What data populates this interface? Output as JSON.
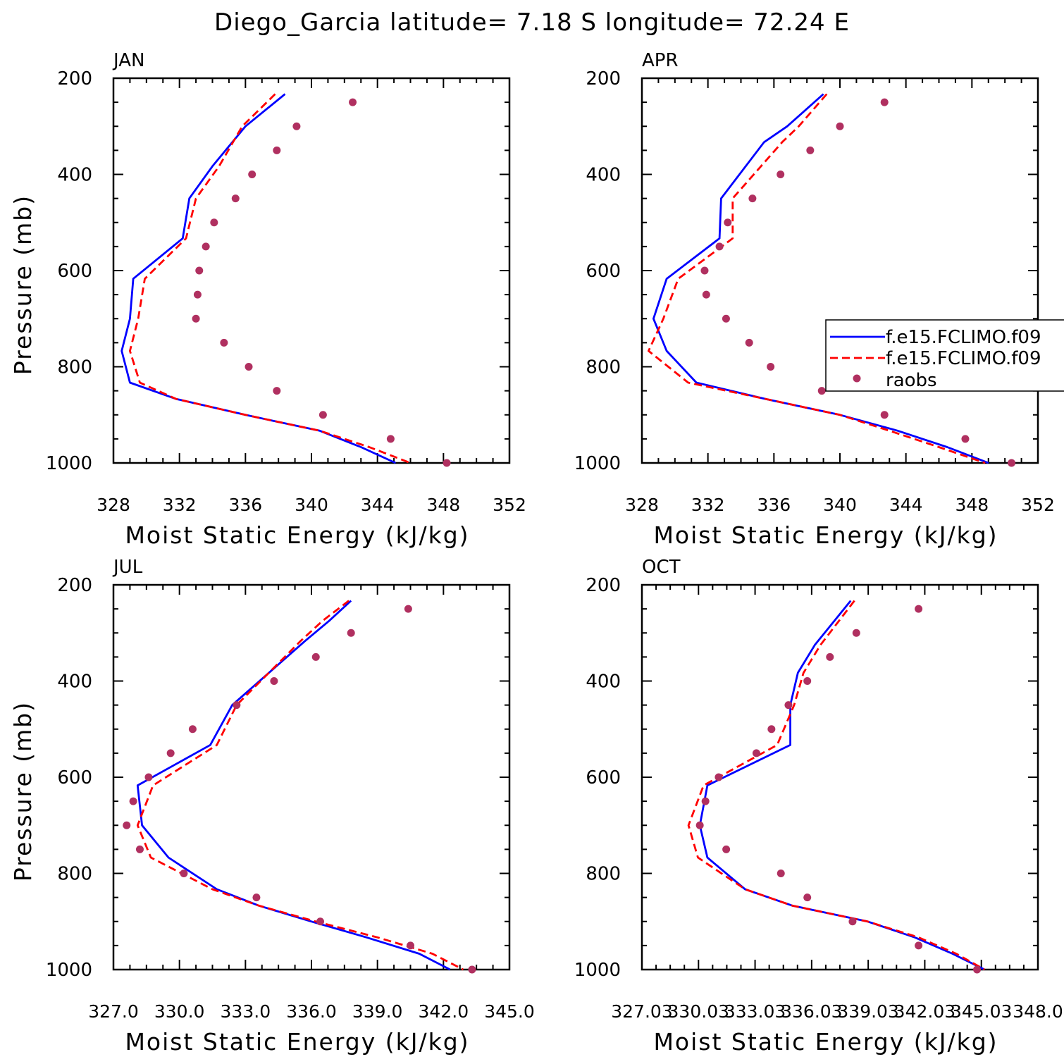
{
  "title": "Diego_Garcia  latitude= 7.18 S longitude= 72.24 E",
  "colors": {
    "model1": "#0000ff",
    "model2": "#ff0000",
    "raobs": "#b03060"
  },
  "legend": {
    "panel": 1,
    "placement": "right-middle, clipped by page edge",
    "entries": [
      {
        "label": "f.e15.FCLIMO.f09",
        "style": "solid-line",
        "color": "#0000ff"
      },
      {
        "label": "f.e15.FCLIMO.f09",
        "style": "dashed-line",
        "color": "#ff0000"
      },
      {
        "label": "raobs",
        "style": "marker",
        "color": "#b03060"
      }
    ]
  },
  "chart_data": [
    {
      "type": "line",
      "panel_title": "JAN",
      "xlabel": "Moist Static Energy (kJ/kg)",
      "ylabel": "Pressure (mb)",
      "xlim": [
        328,
        352
      ],
      "xticks": [
        328,
        332,
        336,
        340,
        344,
        348,
        352
      ],
      "xtick_labels": [
        "328",
        "332",
        "336",
        "340",
        "344",
        "348",
        "352"
      ],
      "ylim": [
        200,
        1000
      ],
      "yticks": [
        200,
        400,
        600,
        800,
        1000
      ],
      "ytick_labels": [
        "200",
        "400",
        "600",
        "800",
        "1000"
      ],
      "pressure_levels": [
        233,
        300,
        383,
        450,
        533,
        617,
        700,
        767,
        833,
        867,
        900,
        933,
        967,
        1000
      ],
      "series": [
        {
          "style": "solid",
          "color": "#0000ff",
          "values": [
            338.4,
            336.0,
            334.0,
            332.6,
            332.2,
            329.2,
            329.0,
            328.5,
            329.0,
            331.8,
            336.0,
            340.5,
            343.0,
            345.1
          ]
        },
        {
          "style": "dashed",
          "color": "#ff0000",
          "values": [
            337.8,
            335.8,
            334.4,
            333.0,
            332.4,
            329.9,
            329.5,
            329.0,
            329.6,
            331.8,
            336.0,
            340.5,
            343.5,
            346.0
          ]
        }
      ],
      "raobs": {
        "pressure": [
          250,
          300,
          350,
          400,
          450,
          500,
          550,
          600,
          650,
          700,
          750,
          800,
          850,
          900,
          950,
          1000
        ],
        "values": [
          342.5,
          339.1,
          337.9,
          336.4,
          335.4,
          334.1,
          333.6,
          333.2,
          333.1,
          333.0,
          334.7,
          336.2,
          337.9,
          340.7,
          344.8,
          348.2
        ]
      }
    },
    {
      "type": "line",
      "panel_title": "APR",
      "xlabel": "Moist Static Energy (kJ/kg)",
      "ylabel": "",
      "xlim": [
        328,
        352
      ],
      "xticks": [
        328,
        332,
        336,
        340,
        344,
        348,
        352
      ],
      "xtick_labels": [
        "328",
        "332",
        "336",
        "340",
        "344",
        "348",
        "352"
      ],
      "ylim": [
        200,
        1000
      ],
      "yticks": [
        200,
        400,
        600,
        800,
        1000
      ],
      "ytick_labels": [
        "200",
        "400",
        "600",
        "800",
        "1000"
      ],
      "pressure_levels": [
        233,
        300,
        333,
        450,
        533,
        617,
        700,
        767,
        833,
        867,
        900,
        933,
        967,
        1000
      ],
      "series": [
        {
          "style": "solid",
          "color": "#0000ff",
          "values": [
            339.0,
            336.8,
            335.4,
            332.8,
            332.7,
            329.5,
            328.7,
            329.5,
            331.3,
            335.5,
            340.0,
            343.5,
            346.5,
            349.0
          ]
        },
        {
          "style": "dashed",
          "color": "#ff0000",
          "values": [
            339.2,
            337.5,
            336.5,
            333.5,
            333.5,
            330.2,
            329.3,
            328.4,
            330.8,
            335.5,
            340.0,
            343.0,
            346.0,
            348.8
          ]
        }
      ],
      "raobs": {
        "pressure": [
          250,
          300,
          350,
          400,
          450,
          500,
          550,
          600,
          650,
          700,
          750,
          800,
          850,
          900,
          950,
          1000
        ],
        "values": [
          342.7,
          340.0,
          338.2,
          336.4,
          334.7,
          333.2,
          332.7,
          331.8,
          331.9,
          333.1,
          334.5,
          335.8,
          338.9,
          342.7,
          347.6,
          350.4
        ]
      }
    },
    {
      "type": "line",
      "panel_title": "JUL",
      "xlabel": "Moist Static Energy (kJ/kg)",
      "ylabel": "Pressure (mb)",
      "xlim": [
        327,
        345
      ],
      "xticks": [
        327,
        330,
        333,
        336,
        339,
        342,
        345
      ],
      "xtick_labels": [
        "327.0",
        "330.0",
        "333.0",
        "336.0",
        "339.0",
        "342.0",
        "345.0"
      ],
      "ylim": [
        200,
        1000
      ],
      "yticks": [
        200,
        400,
        600,
        800,
        1000
      ],
      "ytick_labels": [
        "200",
        "400",
        "600",
        "800",
        "1000"
      ],
      "pressure_levels": [
        233,
        275,
        317,
        450,
        533,
        617,
        700,
        767,
        833,
        867,
        900,
        933,
        967,
        1000
      ],
      "series": [
        {
          "style": "solid",
          "color": "#0000ff",
          "values": [
            337.8,
            336.8,
            335.7,
            332.4,
            331.4,
            328.1,
            328.3,
            329.5,
            331.7,
            333.6,
            336.0,
            338.5,
            340.9,
            342.3
          ]
        },
        {
          "style": "dashed",
          "color": "#ff0000",
          "values": [
            337.7,
            336.5,
            335.5,
            332.6,
            331.7,
            328.8,
            328.1,
            328.7,
            331.5,
            333.6,
            336.2,
            339.0,
            341.5,
            342.9
          ]
        }
      ],
      "raobs": {
        "pressure": [
          250,
          300,
          350,
          400,
          450,
          500,
          550,
          600,
          650,
          700,
          750,
          800,
          850,
          900,
          950,
          1000
        ],
        "values": [
          340.4,
          337.8,
          336.2,
          334.3,
          332.6,
          330.6,
          329.6,
          328.6,
          327.9,
          327.6,
          328.2,
          330.2,
          333.5,
          336.4,
          340.5,
          343.3
        ]
      }
    },
    {
      "type": "line",
      "panel_title": "OCT",
      "xlabel": "Moist Static Energy (kJ/kg)",
      "ylabel": "",
      "xlim": [
        327.03,
        348.03
      ],
      "xticks": [
        327.03,
        330.03,
        333.03,
        336.03,
        339.03,
        342.03,
        345.03,
        348.03
      ],
      "xtick_labels": [
        "327.03",
        "330.03",
        "333.03",
        "336.03",
        "339.03",
        "342.03",
        "345.03",
        "348.0"
      ],
      "ylim": [
        200,
        1000
      ],
      "yticks": [
        200,
        400,
        600,
        800,
        1000
      ],
      "ytick_labels": [
        "200",
        "400",
        "600",
        "800",
        "1000"
      ],
      "pressure_levels": [
        233,
        325,
        383,
        450,
        533,
        617,
        700,
        767,
        833,
        867,
        900,
        933,
        967,
        1000
      ],
      "series": [
        {
          "style": "solid",
          "color": "#0000ff",
          "values": [
            338.1,
            336.2,
            335.3,
            334.9,
            334.9,
            330.5,
            330.1,
            330.5,
            332.5,
            335.0,
            339.0,
            341.5,
            343.5,
            345.2
          ]
        },
        {
          "style": "dashed",
          "color": "#ff0000",
          "values": [
            338.3,
            336.5,
            335.6,
            335.1,
            334.2,
            330.3,
            329.5,
            330.0,
            332.5,
            335.0,
            339.0,
            341.7,
            343.7,
            345.2
          ]
        }
      ],
      "raobs": {
        "pressure": [
          250,
          300,
          350,
          400,
          450,
          500,
          550,
          600,
          650,
          700,
          750,
          800,
          850,
          900,
          950,
          1000
        ],
        "values": [
          341.7,
          338.4,
          337.0,
          335.8,
          334.8,
          333.9,
          333.1,
          331.1,
          330.4,
          330.1,
          331.5,
          334.4,
          335.8,
          338.2,
          341.7,
          344.8
        ]
      }
    }
  ]
}
